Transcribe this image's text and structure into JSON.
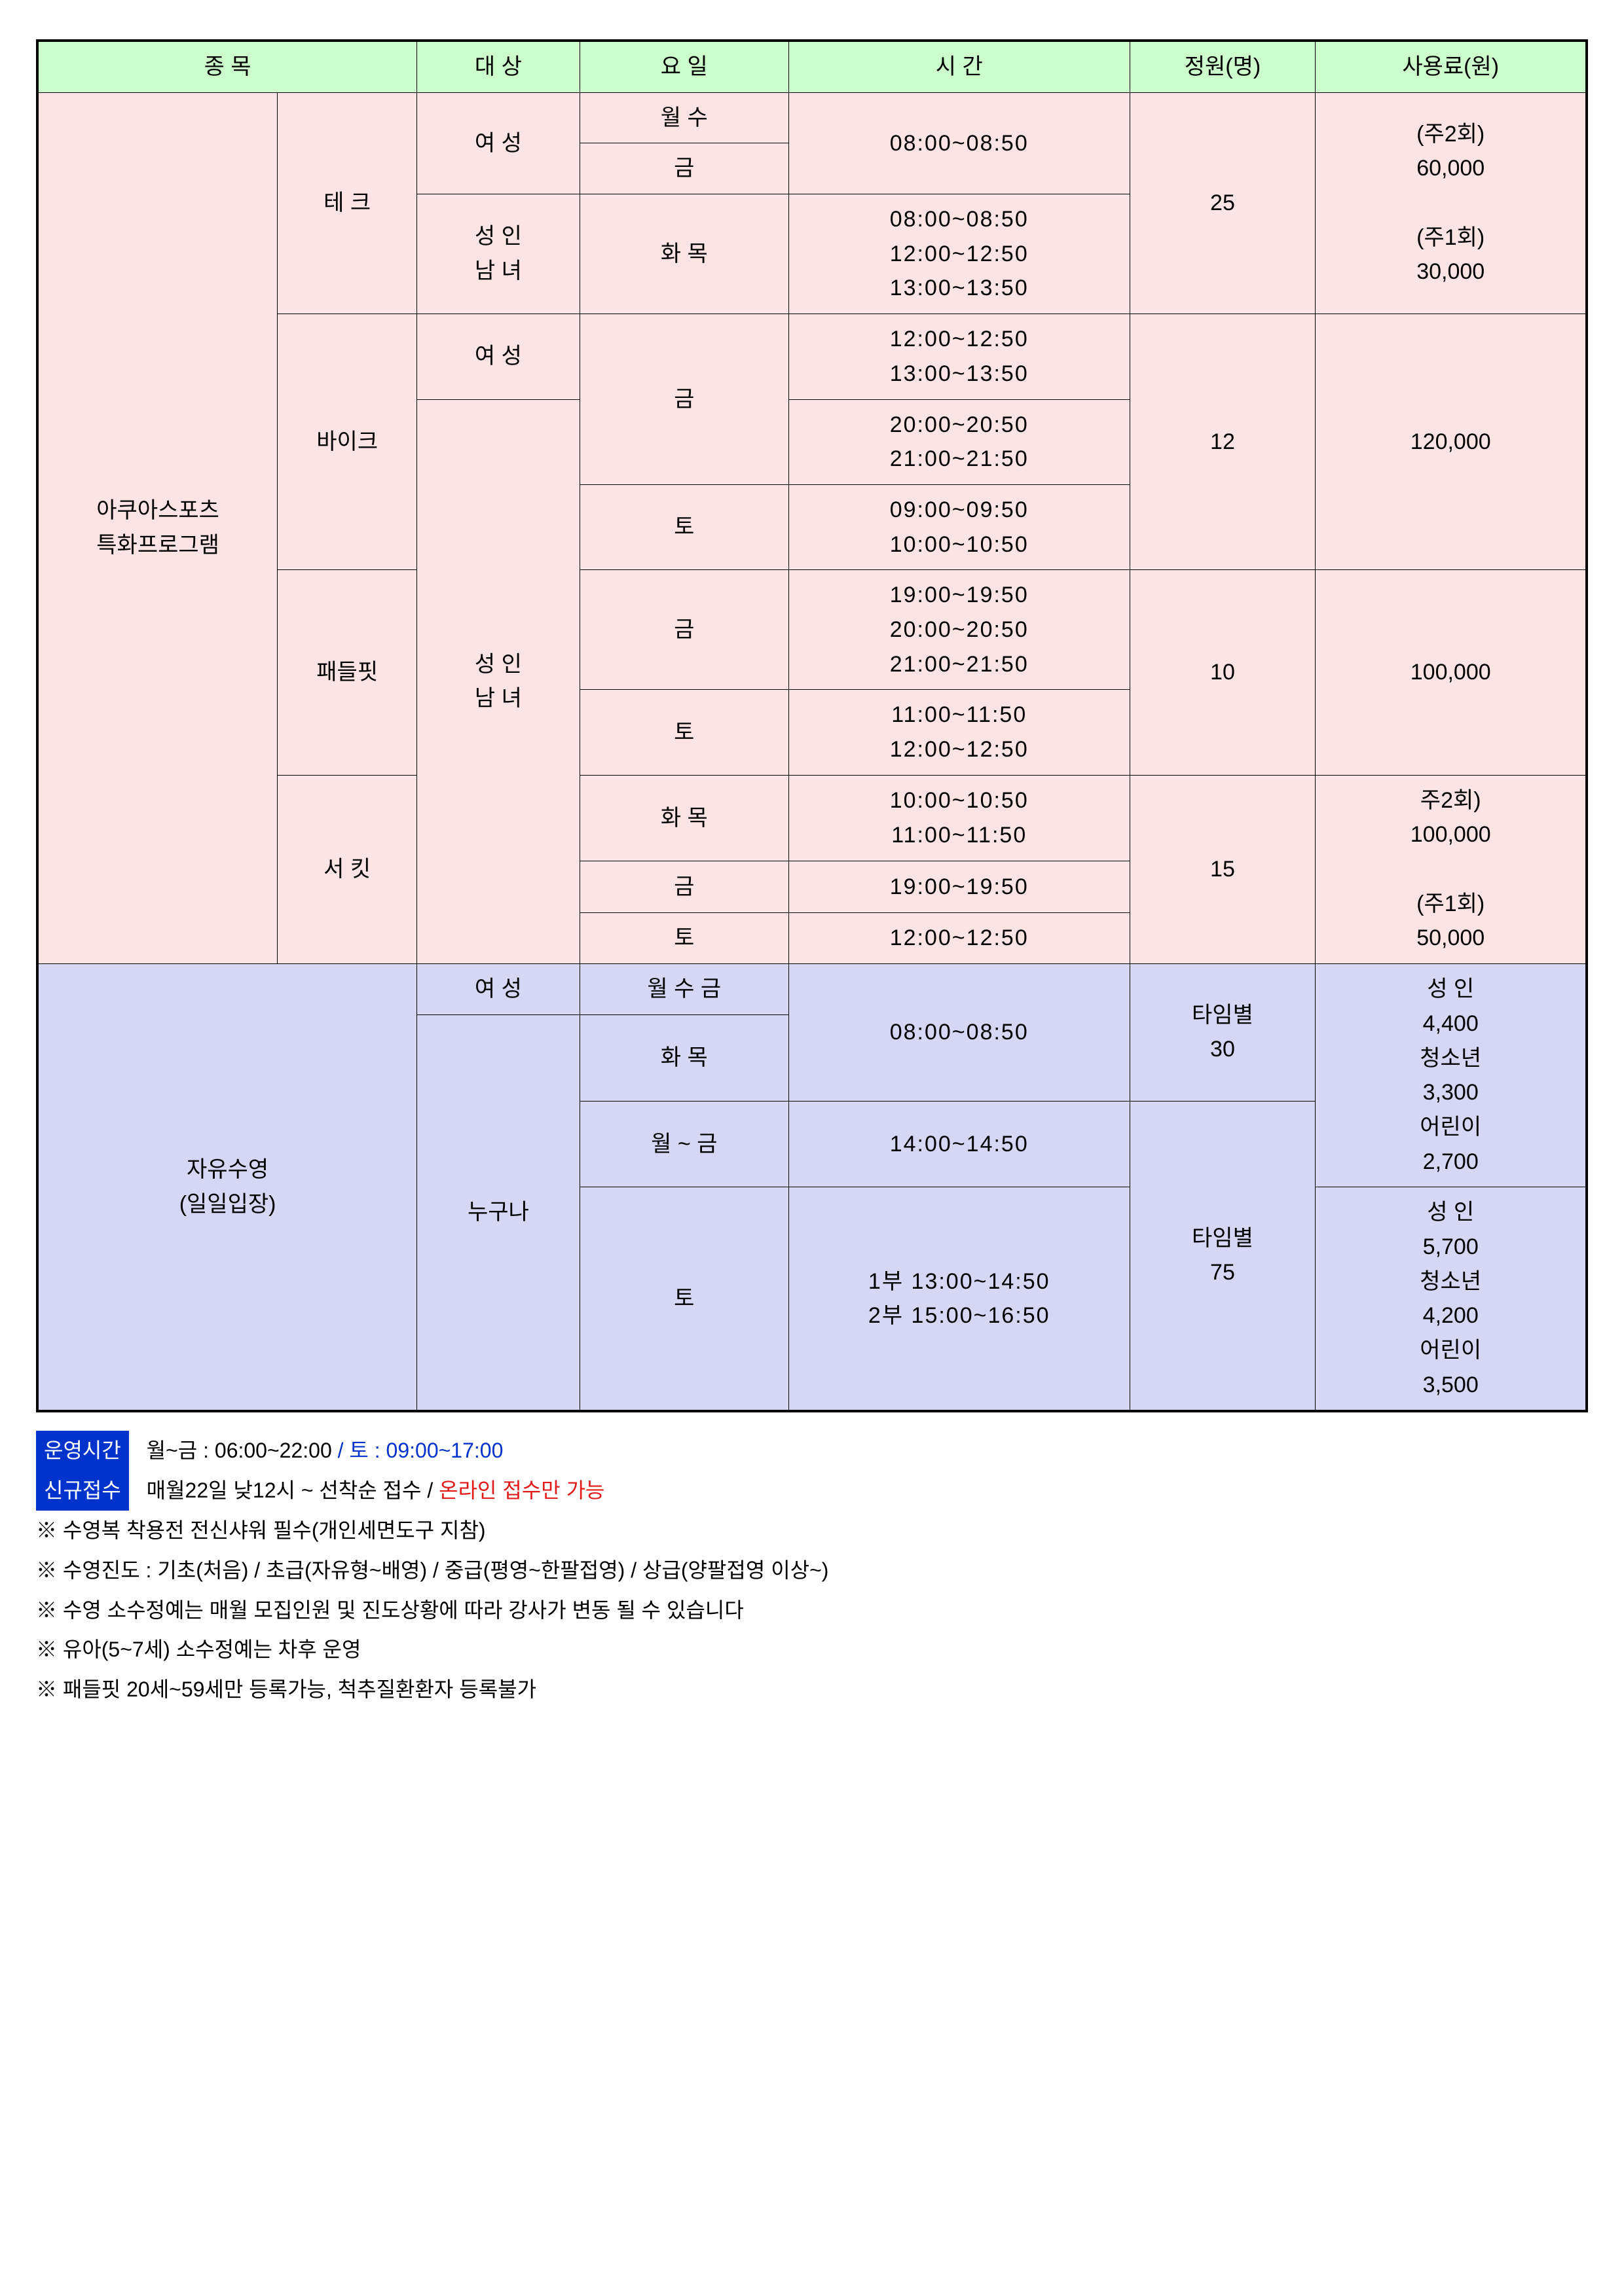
{
  "header": {
    "col1": "종   목",
    "col2": "대  상",
    "col3": "요  일",
    "col4": "시   간",
    "col5": "정원(명)",
    "col6": "사용료(원)"
  },
  "aqua": {
    "title": "아쿠아스포츠\n특화프로그램",
    "tech": {
      "name": "테 크",
      "t1_target": "여 성",
      "t1_day1": "월  수",
      "t1_day2": "금",
      "t1_time": "08:00~08:50",
      "t2_target": "성 인\n남 녀",
      "t2_day": "화  목",
      "t2_time": "08:00~08:50\n12:00~12:50\n13:00~13:50",
      "cap": "25",
      "fee": "(주2회)\n60,000\n\n(주1회)\n30,000"
    },
    "bike": {
      "name": "바이크",
      "t1_target": "여  성",
      "t1_day": "금",
      "t1_time": "12:00~12:50\n13:00~13:50",
      "t2_time": "20:00~20:50\n21:00~21:50",
      "t3_day": "토",
      "t3_time": "09:00~09:50\n10:00~10:50",
      "cap": "12",
      "fee": "120,000"
    },
    "adult_mf": "성 인\n남 녀",
    "paddle": {
      "name": "패들핏",
      "t1_day": "금",
      "t1_time": "19:00~19:50\n20:00~20:50\n21:00~21:50",
      "t2_day": "토",
      "t2_time": "11:00~11:50\n12:00~12:50",
      "cap": "10",
      "fee": "100,000"
    },
    "circuit": {
      "name": "서 킷",
      "t1_day": "화  목",
      "t1_time": "10:00~10:50\n11:00~11:50",
      "t2_day": "금",
      "t2_time": "19:00~19:50",
      "t3_day": "토",
      "t3_time": "12:00~12:50",
      "cap": "15",
      "fee": "주2회)\n100,000\n\n(주1회)\n50,000"
    }
  },
  "free": {
    "title": "자유수영\n(일일입장)",
    "t1_target": "여  성",
    "t1_day": "월  수  금",
    "t1_time": "08:00~08:50",
    "t1_cap": "타임별\n30",
    "anyone": "누구나",
    "t2_day": "화    목",
    "t3_day": "월  ~  금",
    "t3_time": "14:00~14:50",
    "t4_day": "토",
    "t4_time": "1부  13:00~14:50\n2부  15:00~16:50",
    "t3_cap": "타임별\n75",
    "fee1": "성    인\n4,400\n청소년\n3,300\n어린이\n2,700",
    "fee2": "성    인\n5,700\n청소년\n4,200\n어린이\n3,500"
  },
  "footer": {
    "hours_label": "운영시간",
    "hours_wk": "월~금  :  06:00~22:00",
    "slash": "/",
    "hours_sat": "토  :  09:00~17:00",
    "reg_label": "신규접수",
    "reg_text": "매월22일  낮12시  ~  선착순 접수",
    "reg_online": "온라인 접수만 가능",
    "n1": "※  수영복 착용전 전신샤워 필수(개인세면도구 지참)",
    "n2": "※  수영진도  :  기초(처음)  /  초급(자유형~배영)  /  중급(평영~한팔접영)  /  상급(양팔접영 이상~)",
    "n3": "※  수영 소수정예는 매월 모집인원 및 진도상황에 따라 강사가 변동 될 수 있습니다",
    "n4": "※  유아(5~7세)  소수정예는  차후  운영",
    "n5": "※  패들핏 20세~59세만 등록가능,  척추질환환자 등록불가"
  },
  "colwidths": {
    "c1": "15.5%",
    "c2": "9%",
    "c3": "10.5%",
    "c4": "13.5%",
    "c5": "22%",
    "c6": "12%",
    "c7": "17.5%"
  }
}
